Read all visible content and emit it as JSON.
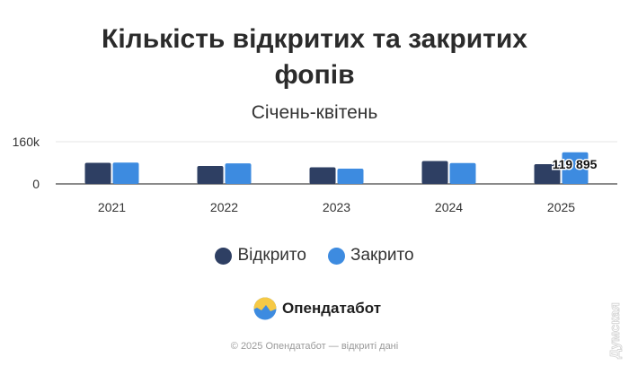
{
  "chart_data": {
    "type": "bar",
    "title": "Кількість відкритих та закритих фопів",
    "title_lines": [
      "Кількість відкритих та закритих",
      "фопів"
    ],
    "subtitle": "Січень-квітень",
    "categories": [
      "2021",
      "2022",
      "2023",
      "2024",
      "2025"
    ],
    "series": [
      {
        "name": "Відкрито",
        "values": [
          80000,
          68000,
          63000,
          87000,
          75000
        ]
      },
      {
        "name": "Закрито",
        "values": [
          81000,
          78000,
          58000,
          79000,
          119895
        ]
      }
    ],
    "data_labels": [
      {
        "series": 1,
        "index": 4,
        "text": "119 895"
      }
    ],
    "ylim": [
      0,
      160000
    ],
    "yticks": [
      0,
      160000
    ],
    "ytick_labels": [
      "0",
      "160k"
    ],
    "grid": true,
    "legend_position": "bottom",
    "colors": [
      "#2e3f63",
      "#3d8be0"
    ]
  },
  "legend": {
    "items": [
      {
        "label": "Відкрито",
        "color": "#2e3f63"
      },
      {
        "label": "Закрито",
        "color": "#3d8be0"
      }
    ]
  },
  "brand": {
    "name": "Опендатабот",
    "logo_icon": "opendatabot-logo-icon",
    "logo_colors": [
      "#f6c945",
      "#3d8be0"
    ]
  },
  "footer": {
    "copyright": "© 2025 Опендатабот — відкриті дані"
  },
  "watermark": {
    "text": "Думская"
  }
}
